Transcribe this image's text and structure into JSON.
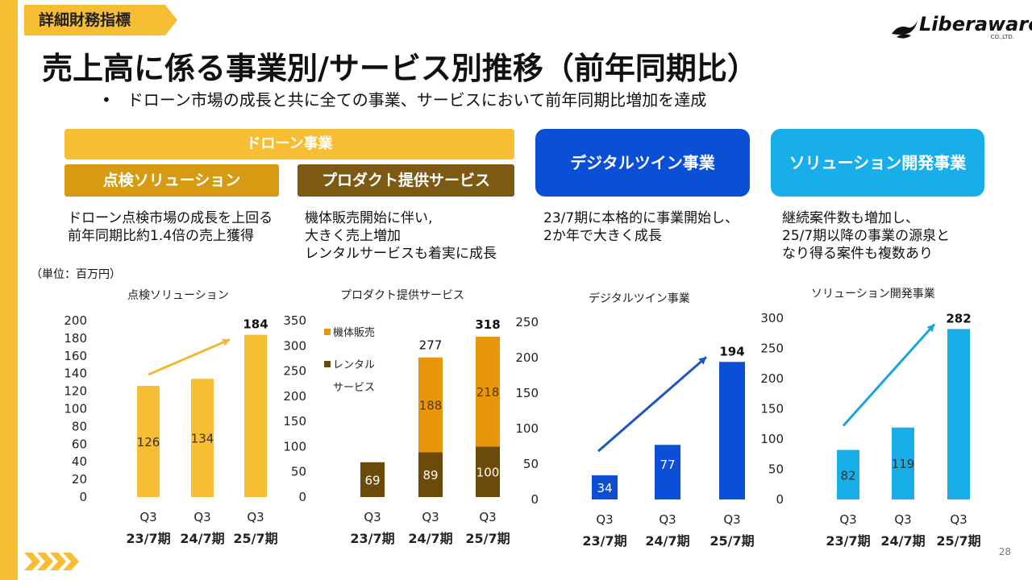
{
  "header": {
    "tag": "詳細財務指標",
    "title": "売上高に係る事業別/サービス別推移（前年同期比）",
    "subtitle": "•　ドローン市場の成長と共に全ての事業、サービスにおいて前年同期比増加を達成",
    "logo_text": "Liberaware",
    "logo_sub": "CO.,LTD.",
    "page_number": "28"
  },
  "categories": {
    "drone": "ドローン事業",
    "inspect": "点検ソリューション",
    "product": "プロダクト提供サービス",
    "digital": "デジタルツイン事業",
    "solution": "ソリューション開発事業"
  },
  "descriptions": {
    "inspect": "ドローン点検市場の成長を上回る\n前年同期比約1.4倍の売上獲得",
    "product": "機体販売開始に伴い,\n大きく売上増加\nレンタルサービスも着実に成長",
    "digital": "23/7期に本格的に事業開始し、\n2か年で大きく成長",
    "solution": "継続案件数も増加し、\n25/7期以降の事業の源泉と\nなり得る案件も複数あり"
  },
  "unit": "（単位：百万円）",
  "colors": {
    "yellow": "#f7bd33",
    "orange": "#e8960c",
    "brown": "#6b4a0a",
    "blue": "#0a4fd6",
    "cyan": "#17aeea"
  },
  "chart_data": [
    {
      "type": "bar",
      "title": "点検ソリューション",
      "categories": [
        "Q3\n23/7期",
        "Q3\n24/7期",
        "Q3\n25/7期"
      ],
      "values": [
        126,
        134,
        184
      ],
      "ylim": [
        0,
        200
      ],
      "yticks": [
        0,
        20,
        40,
        60,
        80,
        100,
        120,
        140,
        160,
        180,
        200
      ],
      "label_inside": [
        true,
        true,
        false
      ],
      "color": "#f7bd33"
    },
    {
      "type": "stacked_bar",
      "title": "プロダクト提供サービス",
      "categories": [
        "Q3\n23/7期",
        "Q3\n24/7期",
        "Q3\n25/7期"
      ],
      "series": [
        {
          "name": "レンタルサービス",
          "values": [
            69,
            89,
            100
          ],
          "color": "#6b4a0a"
        },
        {
          "name": "機体販売",
          "values": [
            0,
            188,
            218
          ],
          "color": "#e8960c"
        }
      ],
      "totals": [
        null,
        277,
        318
      ],
      "legend": [
        "機体販売",
        "レンタル",
        "サービス"
      ],
      "ylim": [
        0,
        350
      ],
      "yticks": [
        0,
        50,
        100,
        150,
        200,
        250,
        300,
        350
      ]
    },
    {
      "type": "bar",
      "title": "デジタルツイン事業",
      "categories": [
        "Q3\n23/7期",
        "Q3\n24/7期",
        "Q3\n25/7期"
      ],
      "values": [
        34,
        77,
        194
      ],
      "ylim": [
        0,
        250
      ],
      "yticks": [
        0,
        50,
        100,
        150,
        200,
        250
      ],
      "color": "#0a4fd6"
    },
    {
      "type": "bar",
      "title": "ソリューション開発事業",
      "categories": [
        "Q3\n23/7期",
        "Q3\n24/7期",
        "Q3\n25/7期"
      ],
      "values": [
        82,
        119,
        282
      ],
      "ylim": [
        0,
        300
      ],
      "yticks": [
        0,
        50,
        100,
        150,
        200,
        250,
        300
      ],
      "color": "#17aeea"
    }
  ]
}
